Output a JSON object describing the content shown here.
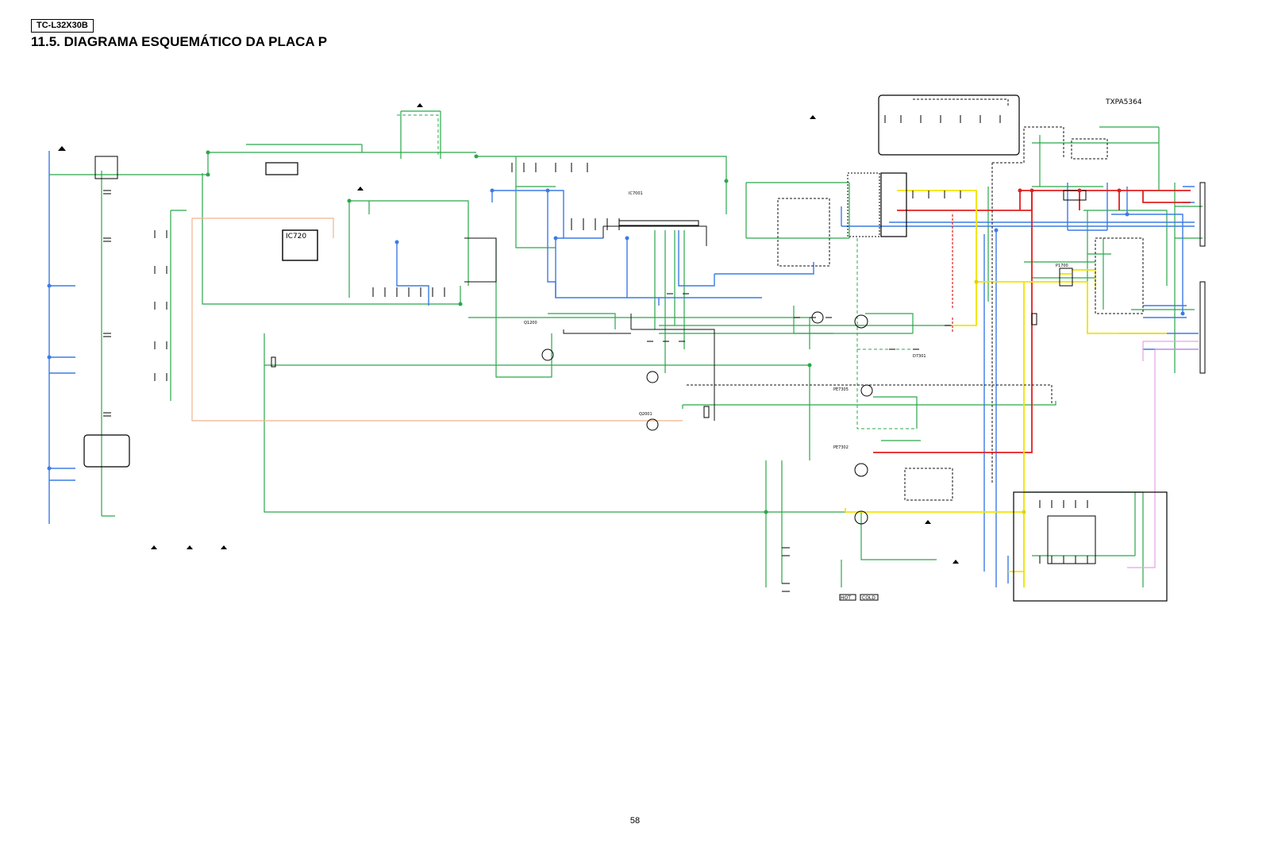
{
  "header": {
    "model": "TC-L32X30B",
    "title": "11.5. DIAGRAMA ESQUEMÁTICO DA PLACA P"
  },
  "schematic": {
    "part_number": "TXPA5364",
    "ic_label": "IC720",
    "labels": [
      "Q1200",
      "Q2001",
      "P1700",
      "D7301",
      "PE7305",
      "PE7302",
      "IC7001",
      "HOT",
      "COLD"
    ],
    "net_colors": {
      "ground": "#2aa84a",
      "primary": "#3c7be6",
      "output_12v": "#e02020",
      "output_stb": "#f2e400",
      "aux": "#f0b48c",
      "signal": "#e6a0e6"
    }
  },
  "footer": {
    "page_number": "58"
  }
}
